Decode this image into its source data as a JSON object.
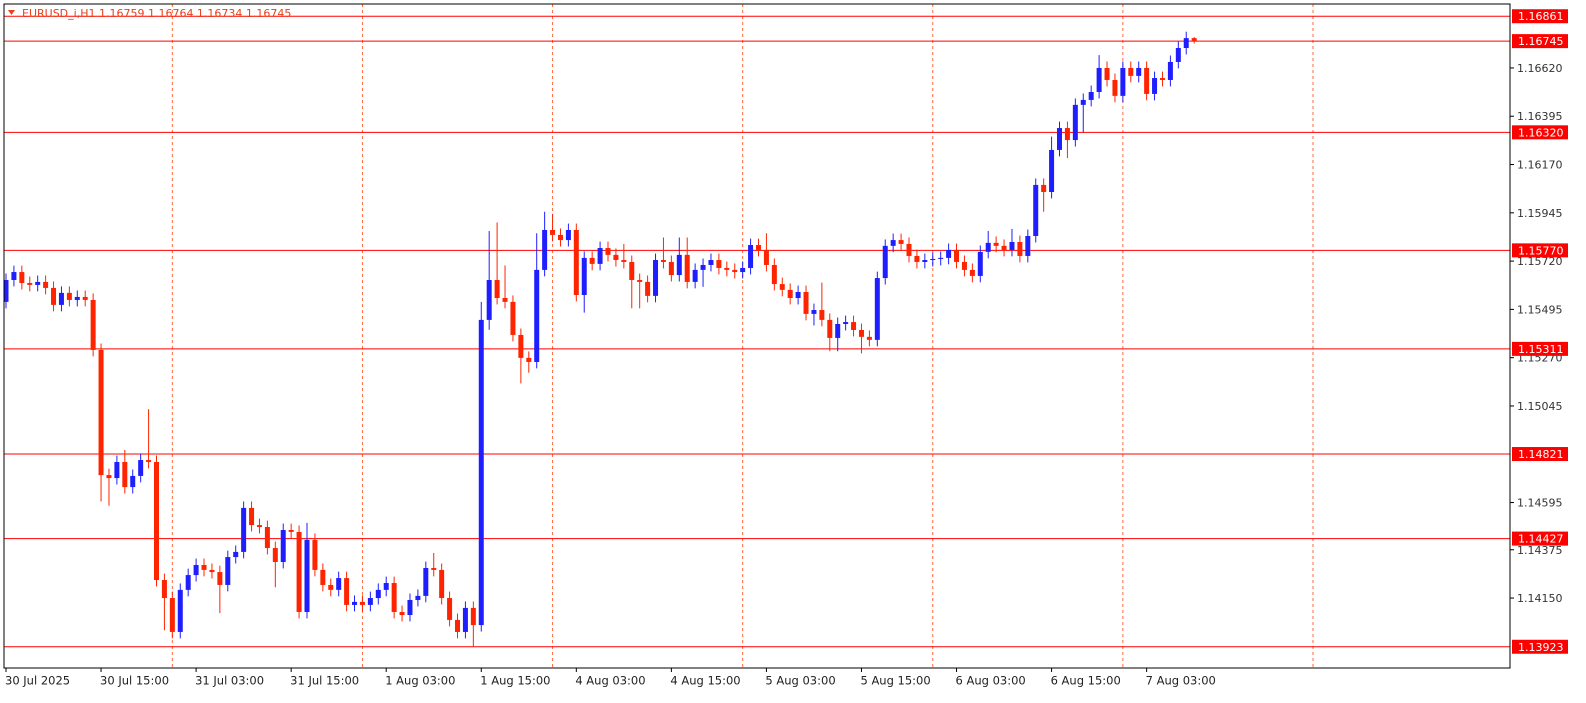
{
  "chart_data": {
    "type": "candlestick",
    "title": "EURUSD_i,H1  1.16759 1.16764 1.16734 1.16745",
    "up_color": "#1e1eff",
    "down_color": "#ff2400",
    "level_color": "#ff0000",
    "grid_color": "#ff6a3d",
    "ylim": [
      1.13824,
      1.16918
    ],
    "xlim": [
      0,
      190
    ],
    "yticks": [
      {
        "value": 1.1662,
        "label": "1.16620"
      },
      1.16395,
      {
        "value": 1.1617,
        "label": "1.16170"
      },
      1.15945,
      {
        "value": 1.1572,
        "label": "1.15720"
      },
      1.15495,
      {
        "value": 1.1527,
        "label": "1.15270"
      },
      1.15045,
      1.14595,
      1.14375,
      {
        "value": 1.1415,
        "label": "1.14150"
      }
    ],
    "xticks": [
      {
        "value": 0,
        "label": "30 Jul 2025"
      },
      {
        "value": 12,
        "label": "30 Jul 15:00"
      },
      {
        "value": 24,
        "label": "31 Jul 03:00"
      },
      {
        "value": 36,
        "label": "31 Jul 15:00"
      },
      {
        "value": 48,
        "label": "1 Aug 03:00"
      },
      {
        "value": 60,
        "label": "1 Aug 15:00"
      },
      {
        "value": 72,
        "label": "4 Aug 03:00"
      },
      {
        "value": 84,
        "label": "4 Aug 15:00"
      },
      {
        "value": 96,
        "label": "5 Aug 03:00"
      },
      {
        "value": 108,
        "label": "5 Aug 15:00"
      },
      {
        "value": 120,
        "label": "6 Aug 03:00"
      },
      {
        "value": 132,
        "label": "6 Aug 15:00"
      },
      {
        "value": 144,
        "label": "7 Aug 03:00"
      }
    ],
    "x_grid": [
      21,
      45,
      69,
      93,
      117,
      141,
      165
    ],
    "levels": [
      1.16861,
      {
        "value": 1.1632,
        "label": "1.16320"
      },
      {
        "value": 1.1577,
        "label": "1.15770"
      },
      1.15311,
      1.14821,
      1.14427,
      1.13923
    ],
    "current_price": 1.16745,
    "open": [
      1.1553,
      1.15632,
      1.15669,
      1.15618,
      1.15609,
      1.15623,
      1.15595,
      1.15516,
      1.15572,
      1.15539,
      1.15553,
      1.15539,
      1.15306,
      1.14723,
      1.14709,
      1.14784,
      1.14667,
      1.14719,
      1.14793,
      1.14784,
      1.14234,
      1.1415,
      1.13992,
      1.14188,
      1.14257,
      1.14304,
      1.14281,
      1.14271,
      1.14211,
      1.14341,
      1.14365,
      1.1457,
      1.1449,
      1.14481,
      1.14383,
      1.14318,
      1.14467,
      1.14458,
      1.14085,
      1.14421,
      1.14281,
      1.14211,
      1.14188,
      1.14243,
      1.14118,
      1.14132,
      1.14118,
      1.1415,
      1.14188,
      1.1422,
      1.14085,
      1.14071,
      1.14141,
      1.1416,
      1.1429,
      1.14281,
      1.1415,
      1.14048,
      1.13992,
      1.14104,
      1.14024,
      1.15446,
      1.15632,
      1.15548,
      1.1553,
      1.15376,
      1.15269,
      1.1525,
      1.15679,
      1.15865,
      1.15842,
      1.15818,
      1.15865,
      1.15562,
      1.15735,
      1.15707,
      1.15781,
      1.15749,
      1.15725,
      1.15716,
      1.15632,
      1.15623,
      1.15558,
      1.15725,
      1.15716,
      1.15655,
      1.15749,
      1.15623,
      1.15679,
      1.15702,
      1.15725,
      1.15688,
      1.15679,
      1.15669,
      1.15688,
      1.15795,
      1.15772,
      1.15702,
      1.15613,
      1.15586,
      1.15548,
      1.15576,
      1.15474,
      1.15492,
      1.15446,
      1.15362,
      1.15427,
      1.15436,
      1.15399,
      1.15367,
      1.15353,
      1.15641,
      1.15791,
      1.15818,
      1.158,
      1.15744,
      1.15716,
      1.15725,
      1.1573,
      1.15735,
      1.15772,
      1.15716,
      1.15679,
      1.15651,
      1.15763,
      1.15805,
      1.15791,
      1.15772,
      1.15809,
      1.15744,
      1.15837,
      1.16075,
      1.16042,
      1.16238,
      1.1634,
      1.16284,
      1.16448,
      1.16471,
      1.16508,
      1.1662,
      1.16564,
      1.1649,
      1.1662,
      1.16583,
      1.1662,
      1.16499,
      1.16573,
      1.16564,
      1.16648,
      1.16713,
      1.16759
    ],
    "high": [
      1.15662,
      1.15699,
      1.15699,
      1.15648,
      1.15653,
      1.15653,
      1.15625,
      1.15602,
      1.15602,
      1.15583,
      1.15583,
      1.15569,
      1.15336,
      1.14753,
      1.14814,
      1.1484,
      1.14749,
      1.14823,
      1.1503,
      1.14814,
      1.14264,
      1.1418,
      1.14218,
      1.14287,
      1.14334,
      1.14334,
      1.14311,
      1.14301,
      1.14371,
      1.14395,
      1.146,
      1.146,
      1.1452,
      1.14511,
      1.14413,
      1.14497,
      1.14497,
      1.14488,
      1.145,
      1.14451,
      1.14311,
      1.14241,
      1.14273,
      1.14273,
      1.14162,
      1.14162,
      1.1418,
      1.14218,
      1.1425,
      1.1425,
      1.14115,
      1.14171,
      1.1419,
      1.1432,
      1.1436,
      1.14311,
      1.1418,
      1.14078,
      1.14134,
      1.14134,
      1.1553,
      1.1586,
      1.159,
      1.157,
      1.1556,
      1.15406,
      1.15299,
      1.1585,
      1.1595,
      1.1594,
      1.15872,
      1.15895,
      1.15895,
      1.15765,
      1.15765,
      1.15811,
      1.15811,
      1.15779,
      1.158,
      1.15746,
      1.15662,
      1.15653,
      1.15755,
      1.1583,
      1.15746,
      1.1583,
      1.1583,
      1.15709,
      1.15732,
      1.15755,
      1.15755,
      1.15718,
      1.15709,
      1.15718,
      1.15825,
      1.15825,
      1.1585,
      1.15732,
      1.15643,
      1.15616,
      1.15606,
      1.15606,
      1.15522,
      1.1562,
      1.15476,
      1.15457,
      1.15466,
      1.15466,
      1.15429,
      1.15397,
      1.15671,
      1.15821,
      1.15848,
      1.15848,
      1.1583,
      1.15774,
      1.15755,
      1.1576,
      1.15765,
      1.15802,
      1.15802,
      1.15746,
      1.15709,
      1.15793,
      1.1586,
      1.15835,
      1.15821,
      1.1587,
      1.15839,
      1.15867,
      1.16105,
      1.16105,
      1.163,
      1.1637,
      1.1637,
      1.16478,
      1.16501,
      1.16538,
      1.1668,
      1.1665,
      1.16594,
      1.1665,
      1.1665,
      1.1665,
      1.1665,
      1.16603,
      1.16603,
      1.16678,
      1.16743,
      1.16789,
      1.16764
    ],
    "low": [
      1.155,
      1.15602,
      1.15588,
      1.15579,
      1.15579,
      1.15565,
      1.15486,
      1.15486,
      1.15509,
      1.15509,
      1.15509,
      1.15276,
      1.146,
      1.1458,
      1.14679,
      1.14637,
      1.14637,
      1.14689,
      1.14754,
      1.14204,
      1.14,
      1.13962,
      1.13962,
      1.14158,
      1.14227,
      1.14251,
      1.14241,
      1.1408,
      1.14181,
      1.14311,
      1.14335,
      1.1446,
      1.14451,
      1.14353,
      1.142,
      1.14288,
      1.14428,
      1.14055,
      1.14055,
      1.14251,
      1.14181,
      1.14158,
      1.14158,
      1.14088,
      1.14088,
      1.14088,
      1.14088,
      1.1412,
      1.14158,
      1.14055,
      1.14041,
      1.14041,
      1.14111,
      1.1413,
      1.14251,
      1.1412,
      1.14018,
      1.13962,
      1.13962,
      1.13923,
      1.13994,
      1.154,
      1.15518,
      1.155,
      1.15346,
      1.1515,
      1.152,
      1.1522,
      1.15649,
      1.15812,
      1.15788,
      1.15788,
      1.15532,
      1.1548,
      1.15677,
      1.15677,
      1.15719,
      1.15695,
      1.15686,
      1.155,
      1.155,
      1.15528,
      1.15528,
      1.15686,
      1.15625,
      1.15625,
      1.15593,
      1.15593,
      1.156,
      1.15672,
      1.15658,
      1.15649,
      1.15639,
      1.15639,
      1.15658,
      1.15742,
      1.15672,
      1.15583,
      1.15556,
      1.15518,
      1.15518,
      1.15444,
      1.1542,
      1.15416,
      1.153,
      1.153,
      1.15397,
      1.15369,
      1.1529,
      1.15323,
      1.15323,
      1.15611,
      1.15761,
      1.1577,
      1.15714,
      1.15686,
      1.15686,
      1.15695,
      1.157,
      1.15705,
      1.15686,
      1.15649,
      1.15621,
      1.15621,
      1.15733,
      1.15761,
      1.15742,
      1.15742,
      1.15714,
      1.15714,
      1.15807,
      1.1595,
      1.16012,
      1.16208,
      1.162,
      1.16254,
      1.1632,
      1.16441,
      1.16478,
      1.16534,
      1.1646,
      1.1646,
      1.16553,
      1.16553,
      1.16469,
      1.16469,
      1.16534,
      1.16534,
      1.16618,
      1.16683,
      1.16734
    ],
    "close": [
      1.15632,
      1.15669,
      1.15618,
      1.15609,
      1.15623,
      1.15595,
      1.15516,
      1.15572,
      1.15539,
      1.15553,
      1.15539,
      1.15306,
      1.14723,
      1.14709,
      1.14784,
      1.14667,
      1.14719,
      1.14793,
      1.14784,
      1.14234,
      1.1415,
      1.13992,
      1.14188,
      1.14257,
      1.14304,
      1.14281,
      1.14271,
      1.14211,
      1.14341,
      1.14365,
      1.1457,
      1.1449,
      1.14481,
      1.14383,
      1.14318,
      1.14467,
      1.14458,
      1.14085,
      1.14421,
      1.14281,
      1.14211,
      1.14188,
      1.14243,
      1.14118,
      1.14132,
      1.14118,
      1.1415,
      1.14188,
      1.1422,
      1.14085,
      1.14071,
      1.14141,
      1.1416,
      1.1429,
      1.14281,
      1.1415,
      1.14048,
      1.13992,
      1.14104,
      1.14024,
      1.15446,
      1.15632,
      1.15548,
      1.1553,
      1.15376,
      1.15269,
      1.1525,
      1.15679,
      1.15865,
      1.15842,
      1.15818,
      1.15865,
      1.15562,
      1.15735,
      1.15707,
      1.15781,
      1.15749,
      1.15725,
      1.15716,
      1.15632,
      1.15623,
      1.15558,
      1.15725,
      1.15716,
      1.15655,
      1.15749,
      1.15623,
      1.15679,
      1.15702,
      1.15725,
      1.15688,
      1.15679,
      1.15669,
      1.15688,
      1.15795,
      1.15772,
      1.15702,
      1.15613,
      1.15586,
      1.15548,
      1.15576,
      1.15474,
      1.15492,
      1.15446,
      1.15362,
      1.15427,
      1.15436,
      1.15399,
      1.15367,
      1.15353,
      1.15641,
      1.15791,
      1.15818,
      1.158,
      1.15744,
      1.15716,
      1.15725,
      1.1573,
      1.15735,
      1.15772,
      1.15716,
      1.15679,
      1.15651,
      1.15763,
      1.15805,
      1.15791,
      1.15772,
      1.15809,
      1.15744,
      1.15837,
      1.16075,
      1.16042,
      1.16238,
      1.1634,
      1.16284,
      1.16448,
      1.16471,
      1.16508,
      1.1662,
      1.16564,
      1.1649,
      1.1662,
      1.16583,
      1.1662,
      1.16499,
      1.16573,
      1.16564,
      1.16648,
      1.16713,
      1.16759,
      1.16745
    ]
  }
}
